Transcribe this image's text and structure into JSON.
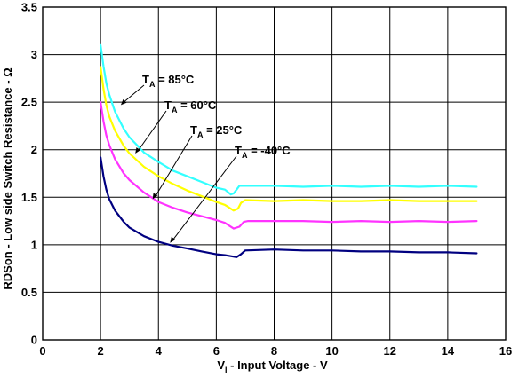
{
  "chart_data": {
    "type": "line",
    "title": "",
    "xlabel": {
      "main": "V",
      "sub": "I",
      "rest": " - Input Voltage - V"
    },
    "ylabel": "RDSon - Low side Switch Resistance - Ω",
    "xlim": [
      0,
      16
    ],
    "ylim": [
      0,
      3.5
    ],
    "xticks": [
      0,
      2,
      4,
      6,
      8,
      10,
      12,
      14,
      16
    ],
    "yticks": [
      0,
      0.5,
      1,
      1.5,
      2,
      2.5,
      3,
      3.5
    ],
    "xtick_labels": [
      "0",
      "2",
      "4",
      "6",
      "8",
      "10",
      "12",
      "14",
      "16"
    ],
    "ytick_labels": [
      "0",
      "0.5",
      "1",
      "1.5",
      "2",
      "2.5",
      "3",
      "3.5"
    ],
    "grid": true,
    "series": [
      {
        "name": "T_A = 85°C",
        "color": "#33ffff",
        "points": [
          [
            2.0,
            3.1
          ],
          [
            2.1,
            2.88
          ],
          [
            2.2,
            2.7
          ],
          [
            2.3,
            2.58
          ],
          [
            2.5,
            2.4
          ],
          [
            2.8,
            2.22
          ],
          [
            3.0,
            2.13
          ],
          [
            3.5,
            1.97
          ],
          [
            4.0,
            1.87
          ],
          [
            4.5,
            1.78
          ],
          [
            5.0,
            1.72
          ],
          [
            5.5,
            1.66
          ],
          [
            6.0,
            1.6
          ],
          [
            6.3,
            1.58
          ],
          [
            6.5,
            1.53
          ],
          [
            6.6,
            1.54
          ],
          [
            6.7,
            1.58
          ],
          [
            6.8,
            1.62
          ],
          [
            7.0,
            1.62
          ],
          [
            8.0,
            1.62
          ],
          [
            9.0,
            1.61
          ],
          [
            10.0,
            1.62
          ],
          [
            11.0,
            1.61
          ],
          [
            12.0,
            1.62
          ],
          [
            13.0,
            1.61
          ],
          [
            14.0,
            1.62
          ],
          [
            15.0,
            1.61
          ]
        ]
      },
      {
        "name": "T_A = 60°C",
        "color": "#ffff00",
        "points": [
          [
            2.0,
            2.87
          ],
          [
            2.1,
            2.64
          ],
          [
            2.2,
            2.47
          ],
          [
            2.3,
            2.35
          ],
          [
            2.5,
            2.2
          ],
          [
            2.8,
            2.04
          ],
          [
            3.0,
            1.96
          ],
          [
            3.5,
            1.82
          ],
          [
            4.0,
            1.72
          ],
          [
            4.5,
            1.64
          ],
          [
            5.0,
            1.57
          ],
          [
            5.5,
            1.51
          ],
          [
            6.0,
            1.45
          ],
          [
            6.3,
            1.42
          ],
          [
            6.6,
            1.36
          ],
          [
            6.75,
            1.38
          ],
          [
            6.85,
            1.44
          ],
          [
            7.0,
            1.47
          ],
          [
            8.0,
            1.46
          ],
          [
            9.0,
            1.47
          ],
          [
            10.0,
            1.46
          ],
          [
            11.0,
            1.46
          ],
          [
            12.0,
            1.47
          ],
          [
            13.0,
            1.46
          ],
          [
            14.0,
            1.46
          ],
          [
            15.0,
            1.46
          ]
        ]
      },
      {
        "name": "T_A = 25°C",
        "color": "#ff33ff",
        "points": [
          [
            2.0,
            2.5
          ],
          [
            2.1,
            2.3
          ],
          [
            2.2,
            2.15
          ],
          [
            2.3,
            2.05
          ],
          [
            2.5,
            1.9
          ],
          [
            2.8,
            1.75
          ],
          [
            3.0,
            1.68
          ],
          [
            3.5,
            1.55
          ],
          [
            4.0,
            1.45
          ],
          [
            4.5,
            1.39
          ],
          [
            5.0,
            1.34
          ],
          [
            5.5,
            1.3
          ],
          [
            6.0,
            1.26
          ],
          [
            6.3,
            1.23
          ],
          [
            6.6,
            1.17
          ],
          [
            6.8,
            1.19
          ],
          [
            6.95,
            1.24
          ],
          [
            7.1,
            1.25
          ],
          [
            8.0,
            1.25
          ],
          [
            9.0,
            1.25
          ],
          [
            10.0,
            1.24
          ],
          [
            11.0,
            1.25
          ],
          [
            12.0,
            1.24
          ],
          [
            13.0,
            1.25
          ],
          [
            14.0,
            1.24
          ],
          [
            15.0,
            1.25
          ]
        ]
      },
      {
        "name": "T_A = -40°C",
        "color": "#000080",
        "points": [
          [
            2.0,
            1.92
          ],
          [
            2.1,
            1.72
          ],
          [
            2.2,
            1.58
          ],
          [
            2.3,
            1.48
          ],
          [
            2.5,
            1.36
          ],
          [
            2.8,
            1.24
          ],
          [
            3.0,
            1.18
          ],
          [
            3.5,
            1.09
          ],
          [
            4.0,
            1.03
          ],
          [
            4.5,
            0.99
          ],
          [
            5.0,
            0.96
          ],
          [
            5.5,
            0.93
          ],
          [
            6.0,
            0.9
          ],
          [
            6.3,
            0.89
          ],
          [
            6.5,
            0.88
          ],
          [
            6.7,
            0.87
          ],
          [
            6.85,
            0.9
          ],
          [
            7.0,
            0.94
          ],
          [
            8.0,
            0.95
          ],
          [
            9.0,
            0.94
          ],
          [
            10.0,
            0.94
          ],
          [
            11.0,
            0.93
          ],
          [
            12.0,
            0.93
          ],
          [
            13.0,
            0.92
          ],
          [
            14.0,
            0.92
          ],
          [
            15.0,
            0.91
          ]
        ]
      }
    ],
    "annotations": [
      {
        "main": "T",
        "sub": "A",
        "rest": " = 85°C",
        "target": [
          2.7,
          2.47
        ]
      },
      {
        "main": "T",
        "sub": "A",
        "rest": " = 60°C",
        "target": [
          3.2,
          1.96
        ]
      },
      {
        "main": "T",
        "sub": "A",
        "rest": " = 25°C",
        "target": [
          3.8,
          1.48
        ]
      },
      {
        "main": "T",
        "sub": "A",
        "rest": " = -40°C",
        "target": [
          4.4,
          1.02
        ]
      }
    ]
  }
}
